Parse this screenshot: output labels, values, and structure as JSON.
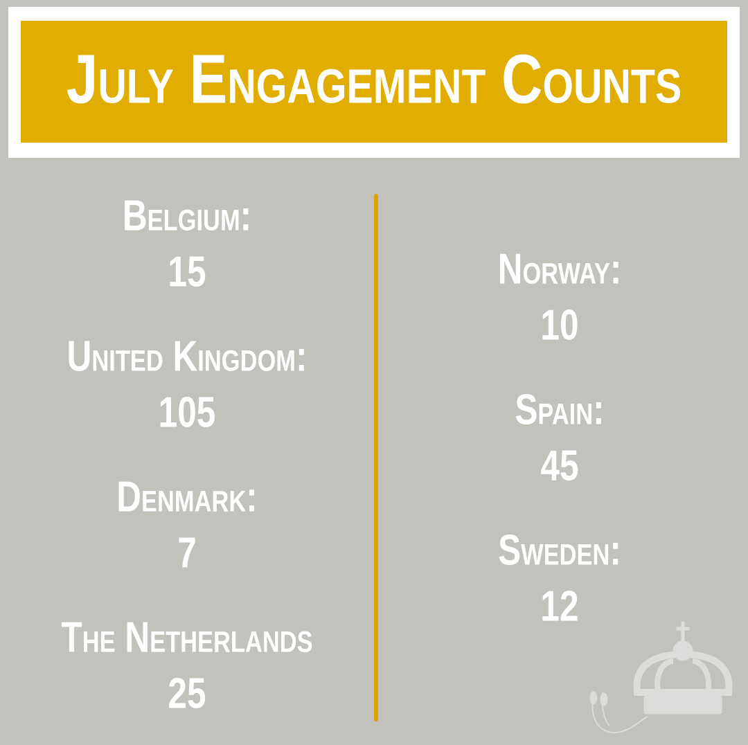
{
  "title": "July Engagement Counts",
  "left": [
    {
      "label": "Belgium:",
      "count": 15
    },
    {
      "label": "United Kingdom:",
      "count": 105
    },
    {
      "label": "Denmark:",
      "count": 7
    },
    {
      "label": "The Netherlands",
      "count": 25
    }
  ],
  "right": [
    {
      "label": "Norway:",
      "count": 10
    },
    {
      "label": "Spain:",
      "count": 45
    },
    {
      "label": "Sweden:",
      "count": 12
    }
  ]
}
